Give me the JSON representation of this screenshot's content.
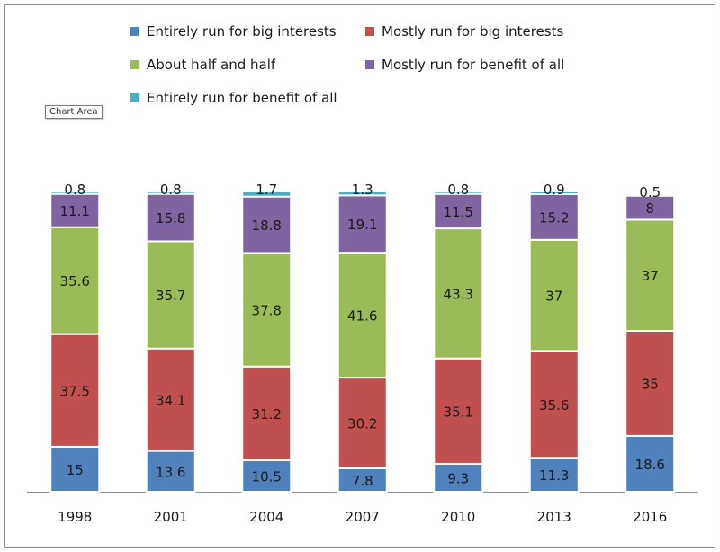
{
  "tooltip": "Chart Area",
  "chart_data": {
    "type": "bar",
    "stacked": true,
    "categories": [
      "1998",
      "2001",
      "2004",
      "2007",
      "2010",
      "2013",
      "2016"
    ],
    "series": [
      {
        "name": "Entirely run for big interests",
        "color": "#4f81bd",
        "values": [
          15,
          13.6,
          10.5,
          7.8,
          9.3,
          11.3,
          18.6
        ]
      },
      {
        "name": "Mostly run for big interests",
        "color": "#c0504d",
        "values": [
          37.5,
          34.1,
          31.2,
          30.2,
          35.1,
          35.6,
          35
        ]
      },
      {
        "name": "About half and half",
        "color": "#9bbb59",
        "values": [
          35.6,
          35.7,
          37.8,
          41.6,
          43.3,
          37,
          37
        ]
      },
      {
        "name": "Mostly run for benefit of all",
        "color": "#8064a2",
        "values": [
          11.1,
          15.8,
          18.8,
          19.1,
          11.5,
          15.2,
          8
        ]
      },
      {
        "name": "Entirely run for benefit of all",
        "color": "#4bacc6",
        "values": [
          0.8,
          0.8,
          1.7,
          1.3,
          0.8,
          0.9,
          0.5
        ]
      }
    ],
    "ylim": [
      0,
      100
    ],
    "grid": false,
    "legend_position": "top"
  }
}
